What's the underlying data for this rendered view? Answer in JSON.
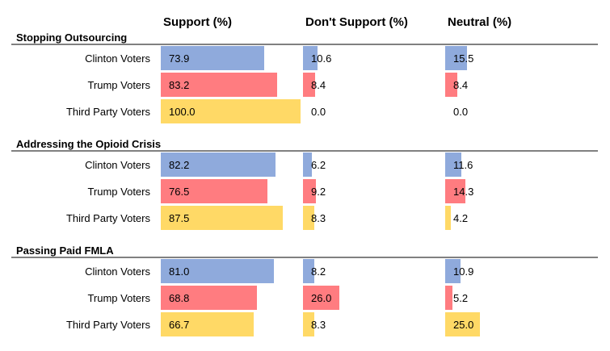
{
  "colors": {
    "Clinton Voters": "#8faadc",
    "Trump Voters": "#ff7c80",
    "Third Party Voters": "#ffd966"
  },
  "chart_data": {
    "type": "bar",
    "columns": [
      "Support (%)",
      "Don't Support (%)",
      "Neutral (%)"
    ],
    "sections": [
      {
        "title": "Stopping Outsourcing",
        "rows": [
          {
            "label": "Clinton Voters",
            "values": [
              "73.9",
              "10.6",
              "15.5"
            ]
          },
          {
            "label": "Trump Voters",
            "values": [
              "83.2",
              "8.4",
              "8.4"
            ]
          },
          {
            "label": "Third Party Voters",
            "values": [
              "100.0",
              "0.0",
              "0.0"
            ]
          }
        ]
      },
      {
        "title": "Addressing the Opioid Crisis",
        "rows": [
          {
            "label": "Clinton Voters",
            "values": [
              "82.2",
              "6.2",
              "11.6"
            ]
          },
          {
            "label": "Trump Voters",
            "values": [
              "76.5",
              "9.2",
              "14.3"
            ]
          },
          {
            "label": "Third Party Voters",
            "values": [
              "87.5",
              "8.3",
              "4.2"
            ]
          }
        ]
      },
      {
        "title": "Passing Paid FMLA",
        "rows": [
          {
            "label": "Clinton Voters",
            "values": [
              "81.0",
              "8.2",
              "10.9"
            ]
          },
          {
            "label": "Trump Voters",
            "values": [
              "68.8",
              "26.0",
              "5.2"
            ]
          },
          {
            "label": "Third Party Voters",
            "values": [
              "66.7",
              "8.3",
              "25.0"
            ]
          }
        ]
      }
    ]
  }
}
